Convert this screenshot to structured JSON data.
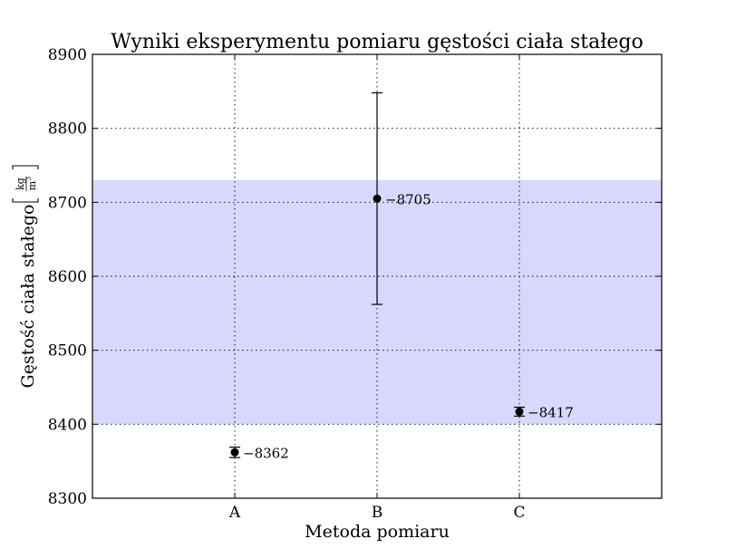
{
  "chart_data": {
    "type": "scatter",
    "title": "Wyniki eksperymentu pomiaru gęstości ciała stałego",
    "xlabel": "Metoda pomiaru",
    "ylabel": "Gęstość ciała stałego",
    "ylabel_unit": {
      "numerator": "kg",
      "denominator": "m",
      "exponent": "3"
    },
    "categories": [
      "A",
      "B",
      "C"
    ],
    "values": [
      8362,
      8705,
      8417
    ],
    "error_low": [
      8355,
      8562,
      8411
    ],
    "error_high": [
      8369,
      8848,
      8423
    ],
    "data_labels": [
      "8362",
      "8705",
      "8417"
    ],
    "data_label_prefix": "−",
    "ylim": [
      8300,
      8900
    ],
    "yticks": [
      8300,
      8400,
      8500,
      8600,
      8700,
      8800,
      8900
    ],
    "ytick_labels": [
      "8300",
      "8400",
      "8500",
      "8600",
      "8700",
      "8800",
      "8900"
    ],
    "reference_band": {
      "from": 8400,
      "to": 8730,
      "color": "#d8d8ff"
    },
    "grid": true,
    "marker_color": "#000000"
  }
}
